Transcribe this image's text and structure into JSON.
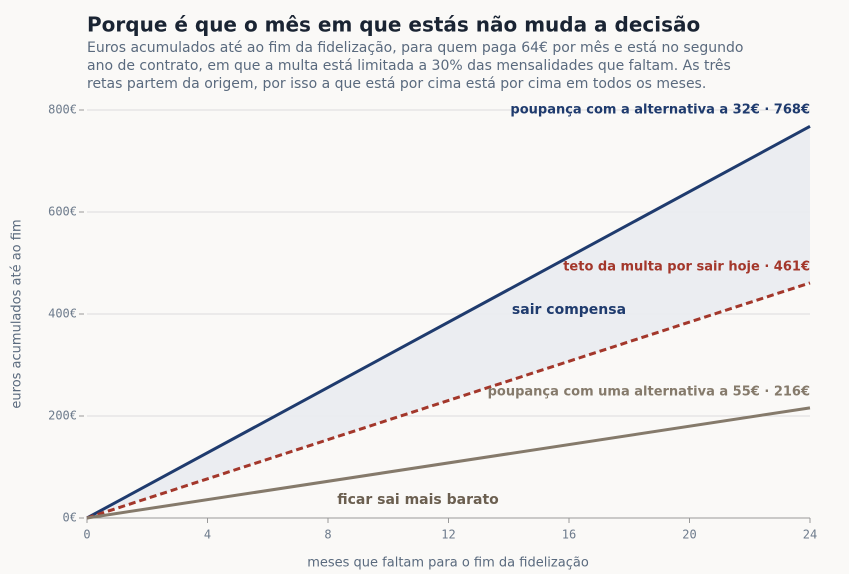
{
  "chart_data": {
    "type": "line",
    "title": "Porque é que o mês em que estás não muda a decisão",
    "subtitle": [
      "Euros acumulados até ao fim da fidelização, para quem paga 64€ por mês e está no segundo",
      "ano de contrato, em que a multa está limitada a 30% das mensalidades que faltam. As três",
      "retas partem da origem, por isso a que está por cima está por cima em todos os meses."
    ],
    "xlabel": "meses que faltam para o fim da fidelização",
    "ylabel": "euros acumulados até ao fim",
    "x": [
      0,
      24
    ],
    "series": [
      {
        "name": "poupança com a alternativa a 32€ · 768€",
        "color": "#1f3b6e",
        "values": [
          0,
          768
        ],
        "dash": false
      },
      {
        "name": "teto da multa por sair hoje · 461€",
        "color": "#a3372b",
        "values": [
          0,
          461
        ],
        "dash": true
      },
      {
        "name": "poupança com uma alternativa a 55€ · 216€",
        "color": "#857a6b",
        "values": [
          0,
          216
        ],
        "dash": false
      }
    ],
    "annotations": [
      "sair compensa",
      "ficar sai mais barato"
    ],
    "xlim": [
      0,
      24
    ],
    "xticks": [
      0,
      4,
      8,
      12,
      16,
      20,
      24
    ],
    "ylim": [
      0,
      800
    ],
    "yticks": [
      {
        "value": 0,
        "label": "0€"
      },
      {
        "value": 200,
        "label": "200€"
      },
      {
        "value": 400,
        "label": "400€"
      },
      {
        "value": 600,
        "label": "600€"
      },
      {
        "value": 800,
        "label": "800€"
      }
    ],
    "grid": true
  }
}
